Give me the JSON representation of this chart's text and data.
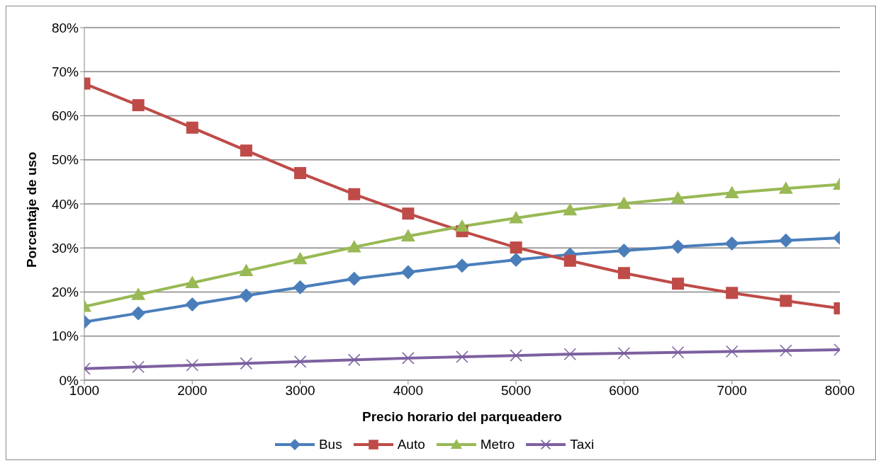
{
  "chart_data": {
    "type": "line",
    "xlabel": "Precio horario del parqueadero",
    "ylabel": "Porcentaje de uso",
    "x": [
      1000,
      1500,
      2000,
      2500,
      3000,
      3500,
      4000,
      4500,
      5000,
      5500,
      6000,
      6500,
      7000,
      7500,
      8000
    ],
    "xlim": [
      1000,
      8000
    ],
    "xticks": [
      1000,
      2000,
      3000,
      4000,
      5000,
      6000,
      7000,
      8000
    ],
    "ylim": [
      0,
      80
    ],
    "yticks": [
      {
        "value": 0,
        "label": "0%"
      },
      {
        "value": 10,
        "label": "10%"
      },
      {
        "value": 20,
        "label": "20%"
      },
      {
        "value": 30,
        "label": "30%"
      },
      {
        "value": 40,
        "label": "40%"
      },
      {
        "value": 50,
        "label": "50%"
      },
      {
        "value": 60,
        "label": "60%"
      },
      {
        "value": 70,
        "label": "70%"
      },
      {
        "value": 80,
        "label": "80%"
      }
    ],
    "grid": "y",
    "legend": "bottom",
    "line_style": "solid",
    "series": [
      {
        "name": "Bus",
        "color": "#4a7ebb",
        "marker": "diamond",
        "values": [
          13.2,
          15.2,
          17.2,
          19.2,
          21.1,
          23.0,
          24.5,
          26.0,
          27.3,
          28.5,
          29.4,
          30.3,
          31.0,
          31.7,
          32.3
        ]
      },
      {
        "name": "Auto",
        "color": "#be4b48",
        "marker": "square",
        "values": [
          67.3,
          62.4,
          57.3,
          52.1,
          47.0,
          42.2,
          37.8,
          33.8,
          30.1,
          27.1,
          24.3,
          21.9,
          19.8,
          18.0,
          16.3
        ]
      },
      {
        "name": "Metro",
        "color": "#98b954",
        "marker": "triangle",
        "values": [
          16.7,
          19.4,
          22.1,
          24.8,
          27.5,
          30.2,
          32.7,
          34.9,
          36.8,
          38.6,
          40.1,
          41.3,
          42.5,
          43.5,
          44.4
        ]
      },
      {
        "name": "Taxi",
        "color": "#7d60a0",
        "marker": "cross",
        "values": [
          2.6,
          3.0,
          3.4,
          3.8,
          4.2,
          4.6,
          5.0,
          5.3,
          5.6,
          5.9,
          6.1,
          6.3,
          6.5,
          6.7,
          6.9
        ]
      }
    ]
  }
}
